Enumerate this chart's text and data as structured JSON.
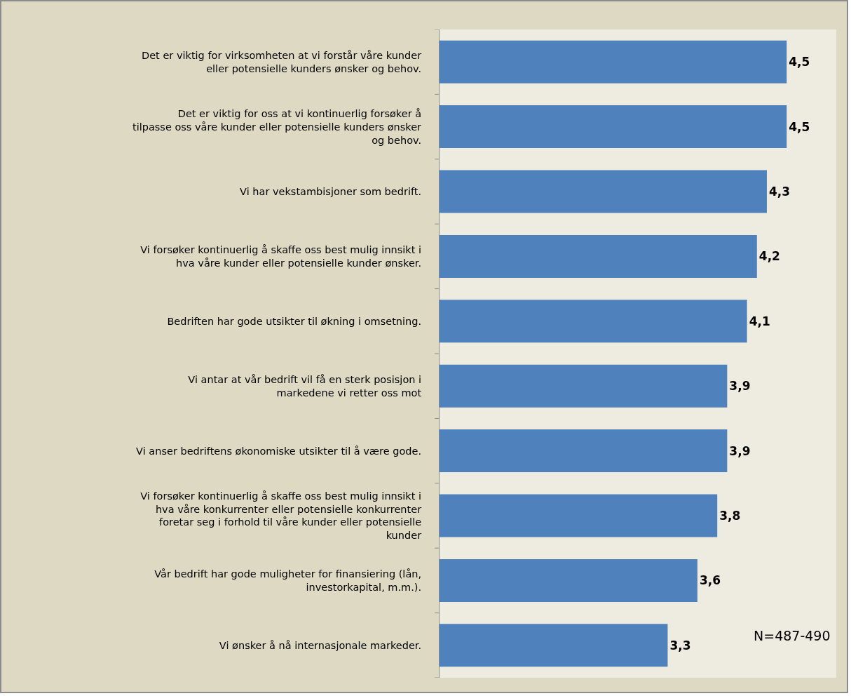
{
  "chart_data": {
    "type": "bar",
    "orientation": "horizontal",
    "categories": [
      "Det er viktig for virksomheten at vi forstår våre kunder eller potensielle kunders ønsker og behov.",
      "Det er viktig for oss at vi kontinuerlig forsøker å tilpasse oss våre kunder eller potensielle kunders ønsker og behov.",
      "Vi har vekstambisjoner som bedrift.",
      "Vi forsøker kontinuerlig å skaffe oss best mulig innsikt i hva våre kunder eller potensielle kunder ønsker.",
      "Bedriften har gode utsikter til økning i omsetning.",
      "Vi antar at vår bedrift vil få en sterk posisjon i markedene vi retter oss mot",
      "Vi anser bedriftens økonomiske utsikter til å være gode.",
      "Vi forsøker kontinuerlig å skaffe oss best mulig innsikt i hva våre konkurrenter eller potensielle konkurrenter foretar seg i forhold til våre kunder eller potensielle kunder",
      "Vår bedrift har gode muligheter for finansiering (lån, investorkapital, m.m.).",
      "Vi ønsker å nå internasjonale markeder."
    ],
    "values": [
      4.5,
      4.5,
      4.3,
      4.2,
      4.1,
      3.9,
      3.9,
      3.8,
      3.6,
      3.3
    ],
    "value_labels": [
      "4,5",
      "4,5",
      "4,3",
      "4,2",
      "4,1",
      "3,9",
      "3,9",
      "3,8",
      "3,6",
      "3,3"
    ],
    "color": "#4f81bd",
    "xlim": [
      1,
      5
    ],
    "tick_labels": "y",
    "legend": false,
    "annotations": [
      "N=487-490"
    ]
  }
}
